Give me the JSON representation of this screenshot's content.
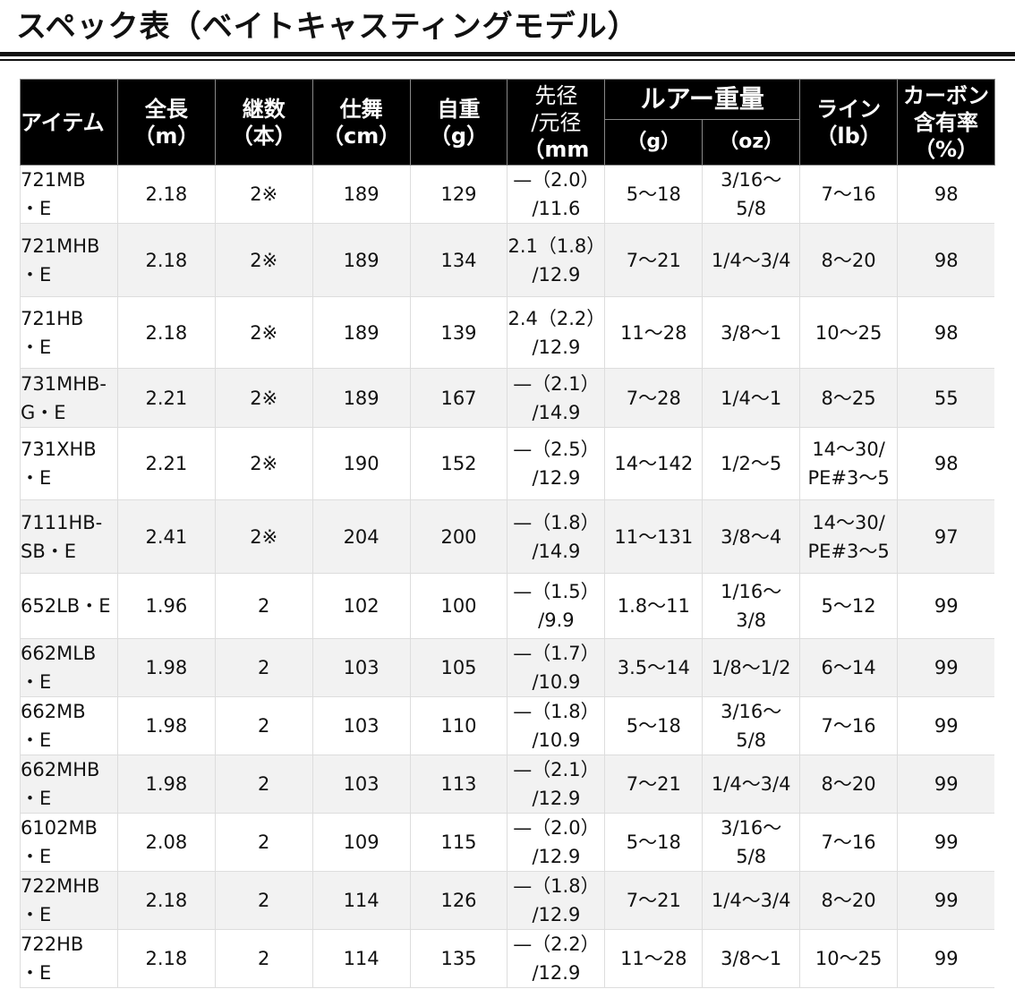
{
  "title": "スペック表（ベイトキャスティングモデル）",
  "headers": {
    "item": "アイテム",
    "length": [
      "全長",
      "（m）"
    ],
    "pieces": [
      "継数",
      "（本）"
    ],
    "closed": [
      "仕舞",
      "（cm）"
    ],
    "weight": [
      "自重",
      "（g）"
    ],
    "diameter": [
      "先径",
      "/元径",
      "（mm"
    ],
    "lure": "ルアー重量",
    "lure_g": "（g）",
    "lure_oz": "（oz）",
    "line": [
      "ライン",
      "（lb）"
    ],
    "carbon": [
      "カーボン",
      "含有率",
      "（%）"
    ]
  },
  "rows": [
    {
      "item": [
        "721MB",
        "・E"
      ],
      "length": "2.18",
      "pieces": "2※",
      "closed": "189",
      "weight": "129",
      "diameter": [
        "—（2.0）",
        "/11.6"
      ],
      "lure_g": "5〜18",
      "lure_oz": [
        "3/16〜",
        "5/8"
      ],
      "line": [
        "7〜16"
      ],
      "carbon": "98"
    },
    {
      "item": [
        "721MHB",
        "・E"
      ],
      "length": "2.18",
      "pieces": "2※",
      "closed": "189",
      "weight": "134",
      "diameter": [
        "2.1（1.8）",
        "/12.9"
      ],
      "lure_g": "7〜21",
      "lure_oz": [
        "1/4〜3/4"
      ],
      "line": [
        "8〜20"
      ],
      "carbon": "98"
    },
    {
      "item": [
        "721HB",
        "・E"
      ],
      "length": "2.18",
      "pieces": "2※",
      "closed": "189",
      "weight": "139",
      "diameter": [
        "2.4（2.2）",
        "/12.9"
      ],
      "lure_g": "11〜28",
      "lure_oz": [
        "3/8〜1"
      ],
      "line": [
        "10〜25"
      ],
      "carbon": "98"
    },
    {
      "item": [
        "731MHB-",
        "G・E"
      ],
      "length": "2.21",
      "pieces": "2※",
      "closed": "189",
      "weight": "167",
      "diameter": [
        "—（2.1）",
        "/14.9"
      ],
      "lure_g": "7〜28",
      "lure_oz": [
        "1/4〜1"
      ],
      "line": [
        "8〜25"
      ],
      "carbon": "55"
    },
    {
      "item": [
        "731XHB",
        "・E"
      ],
      "length": "2.21",
      "pieces": "2※",
      "closed": "190",
      "weight": "152",
      "diameter": [
        "—（2.5）",
        "/12.9"
      ],
      "lure_g": "14〜142",
      "lure_oz": [
        "1/2〜5"
      ],
      "line": [
        "14〜30/",
        "PE#3〜5"
      ],
      "carbon": "98"
    },
    {
      "item": [
        "7111HB-",
        "SB・E"
      ],
      "length": "2.41",
      "pieces": "2※",
      "closed": "204",
      "weight": "200",
      "diameter": [
        "—（1.8）",
        "/14.9"
      ],
      "lure_g": "11〜131",
      "lure_oz": [
        "3/8〜4"
      ],
      "line": [
        "14〜30/",
        "PE#3〜5"
      ],
      "carbon": "97"
    },
    {
      "item": [
        "652LB・E"
      ],
      "length": "1.96",
      "pieces": "2",
      "closed": "102",
      "weight": "100",
      "diameter": [
        "—（1.5）",
        "/9.9"
      ],
      "lure_g": "1.8〜11",
      "lure_oz": [
        "1/16〜",
        "3/8"
      ],
      "line": [
        "5〜12"
      ],
      "carbon": "99"
    },
    {
      "item": [
        "662MLB",
        "・E"
      ],
      "length": "1.98",
      "pieces": "2",
      "closed": "103",
      "weight": "105",
      "diameter": [
        "—（1.7）",
        "/10.9"
      ],
      "lure_g": "3.5〜14",
      "lure_oz": [
        "1/8〜1/2"
      ],
      "line": [
        "6〜14"
      ],
      "carbon": "99"
    },
    {
      "item": [
        "662MB",
        "・E"
      ],
      "length": "1.98",
      "pieces": "2",
      "closed": "103",
      "weight": "110",
      "diameter": [
        "—（1.8）",
        "/10.9"
      ],
      "lure_g": "5〜18",
      "lure_oz": [
        "3/16〜",
        "5/8"
      ],
      "line": [
        "7〜16"
      ],
      "carbon": "99"
    },
    {
      "item": [
        "662MHB",
        "・E"
      ],
      "length": "1.98",
      "pieces": "2",
      "closed": "103",
      "weight": "113",
      "diameter": [
        "—（2.1）",
        "/12.9"
      ],
      "lure_g": "7〜21",
      "lure_oz": [
        "1/4〜3/4"
      ],
      "line": [
        "8〜20"
      ],
      "carbon": "99"
    },
    {
      "item": [
        "6102MB",
        "・E"
      ],
      "length": "2.08",
      "pieces": "2",
      "closed": "109",
      "weight": "115",
      "diameter": [
        "—（2.0）",
        "/12.9"
      ],
      "lure_g": "5〜18",
      "lure_oz": [
        "3/16〜",
        "5/8"
      ],
      "line": [
        "7〜16"
      ],
      "carbon": "99"
    },
    {
      "item": [
        "722MHB",
        "・E"
      ],
      "length": "2.18",
      "pieces": "2",
      "closed": "114",
      "weight": "126",
      "diameter": [
        "—（1.8）",
        "/12.9"
      ],
      "lure_g": "7〜21",
      "lure_oz": [
        "1/4〜3/4"
      ],
      "line": [
        "8〜20"
      ],
      "carbon": "99"
    },
    {
      "item": [
        "722HB",
        "・E"
      ],
      "length": "2.18",
      "pieces": "2",
      "closed": "114",
      "weight": "135",
      "diameter": [
        "—（2.2）",
        "/12.9"
      ],
      "lure_g": "11〜28",
      "lure_oz": [
        "3/8〜1"
      ],
      "line": [
        "10〜25"
      ],
      "carbon": "99"
    }
  ]
}
